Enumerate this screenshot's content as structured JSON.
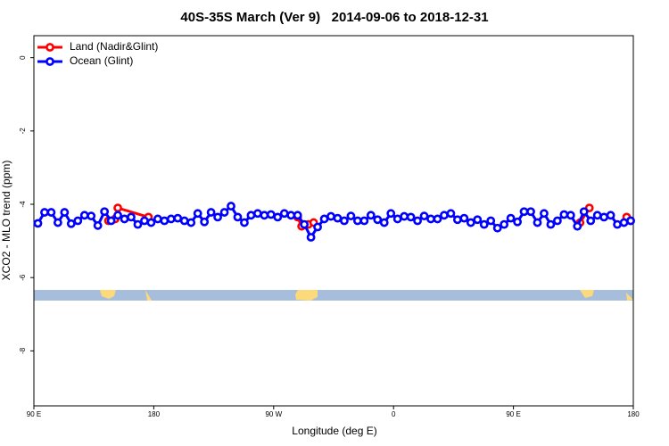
{
  "chart_data": {
    "type": "line",
    "title": "40S-35S March (Ver 9)   2014-09-06 to 2018-12-31",
    "x_label": "Longitude (deg E)",
    "y_label": "XCO2 - MLO trend (ppm)",
    "xlim": [
      90,
      540
    ],
    "ylim": [
      -9.5,
      0.6
    ],
    "xticks": [
      {
        "value": 90,
        "label": "90 E"
      },
      180,
      {
        "value": 270,
        "label": "90 W"
      },
      {
        "value": 360,
        "label": "0"
      },
      {
        "value": 450,
        "label": "90 E"
      },
      {
        "value": 540,
        "label": "180"
      }
    ],
    "yticks": [
      0,
      -2,
      -4,
      -6,
      -8
    ],
    "legend": "upper left",
    "series": [
      {
        "name": "Land (Nadir&Glint)",
        "color": "#ff0000",
        "x": [
          146,
          151,
          153,
          176,
          230,
          288,
          291,
          296,
          300,
          400,
          500,
          507,
          520,
          535,
          538
        ],
        "values": [
          -4.45,
          -4.4,
          -4.1,
          -4.35,
          null,
          -4.35,
          -4.6,
          -4.55,
          -4.5,
          null,
          -4.5,
          -4.1,
          null,
          -4.35,
          -4.45
        ]
      },
      {
        "name": "Ocean (Glint)",
        "color": "#0000ff",
        "x": [
          93,
          98,
          103,
          108,
          113,
          118,
          123,
          128,
          133,
          138,
          143,
          148,
          153,
          158,
          163,
          168,
          173,
          178,
          183,
          188,
          193,
          198,
          203,
          208,
          213,
          218,
          223,
          228,
          233,
          238,
          243,
          248,
          253,
          258,
          263,
          268,
          273,
          278,
          283,
          288,
          293,
          298,
          303,
          308,
          313,
          318,
          323,
          328,
          333,
          338,
          343,
          348,
          353,
          358,
          363,
          368,
          373,
          378,
          383,
          388,
          393,
          398,
          403,
          408,
          413,
          418,
          423,
          428,
          433,
          438,
          443,
          448,
          453,
          458,
          463,
          468,
          473,
          478,
          483,
          488,
          493,
          498,
          503,
          508,
          513,
          518,
          523,
          528,
          533,
          538
        ],
        "values": [
          -4.52,
          -4.22,
          -4.22,
          -4.5,
          -4.22,
          -4.53,
          -4.45,
          -4.3,
          -4.32,
          -4.58,
          -4.2,
          -4.45,
          -4.3,
          -4.4,
          -4.35,
          -4.55,
          -4.45,
          -4.5,
          -4.4,
          -4.45,
          -4.4,
          -4.38,
          -4.45,
          -4.5,
          -4.25,
          -4.48,
          -4.22,
          -4.35,
          -4.22,
          -4.05,
          -4.35,
          -4.5,
          -4.3,
          -4.25,
          -4.3,
          -4.28,
          -4.35,
          -4.25,
          -4.3,
          -4.3,
          -4.55,
          -4.9,
          -4.62,
          -4.4,
          -4.33,
          -4.38,
          -4.45,
          -4.32,
          -4.45,
          -4.45,
          -4.3,
          -4.42,
          -4.5,
          -4.25,
          -4.4,
          -4.33,
          -4.35,
          -4.45,
          -4.32,
          -4.4,
          -4.4,
          -4.3,
          -4.25,
          -4.42,
          -4.38,
          -4.5,
          -4.42,
          -4.55,
          -4.45,
          -4.65,
          -4.55,
          -4.38,
          -4.48,
          -4.2,
          -4.2,
          -4.5,
          -4.25,
          -4.55,
          -4.45,
          -4.28,
          -4.3,
          -4.6,
          -4.2,
          -4.45,
          -4.3,
          -4.35,
          -4.3,
          -4.55,
          -4.5,
          -4.45
        ]
      }
    ]
  }
}
